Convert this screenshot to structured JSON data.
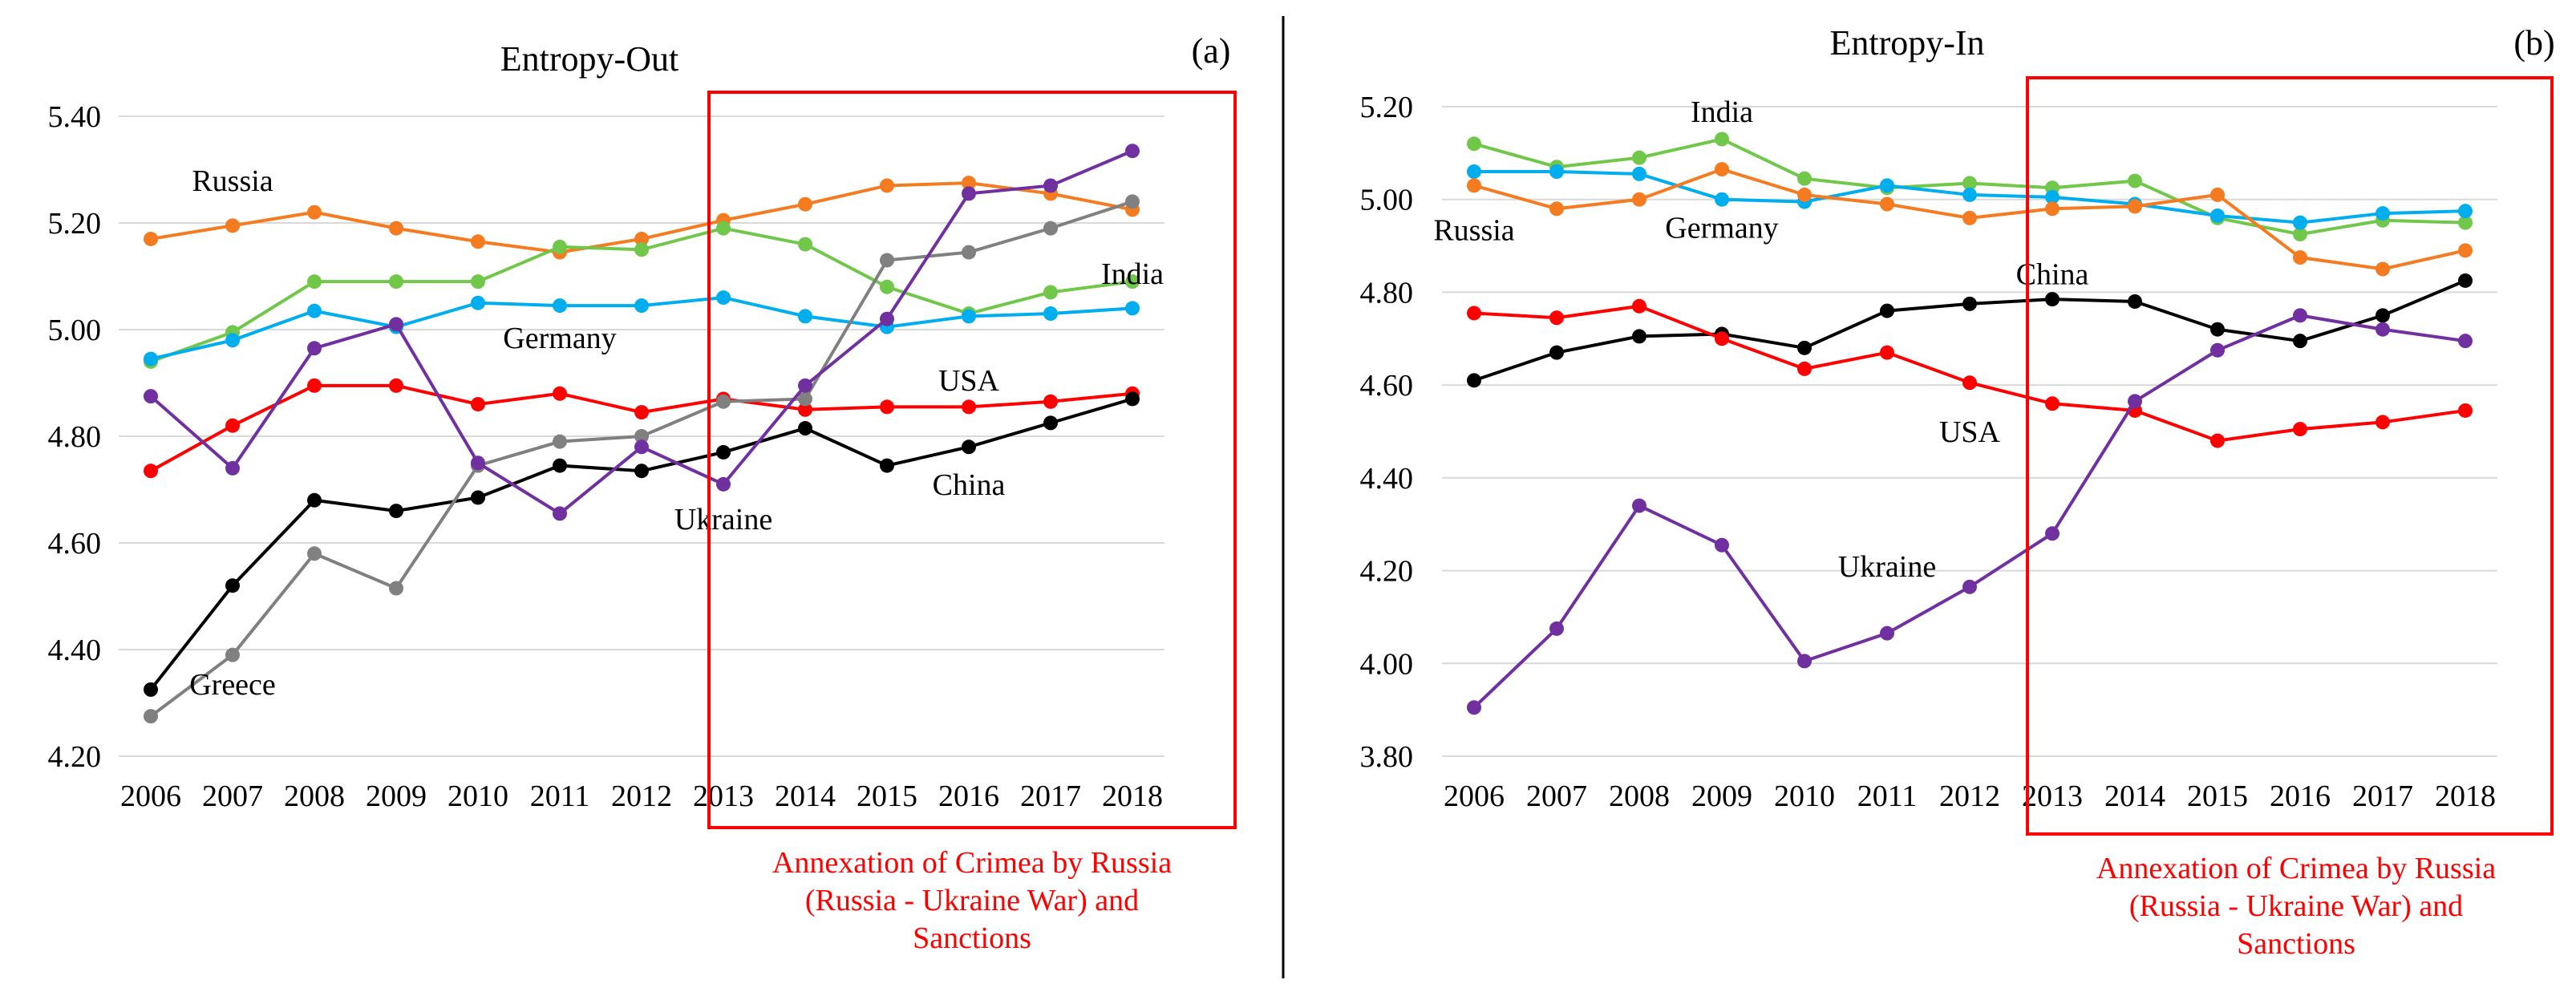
{
  "chart_data": [
    {
      "type": "line",
      "title": "Entropy-Out",
      "panel_label": "(a)",
      "xlabel": "",
      "ylabel": "",
      "categories": [
        "2006",
        "2007",
        "2008",
        "2009",
        "2010",
        "2011",
        "2012",
        "2013",
        "2014",
        "2015",
        "2016",
        "2017",
        "2018"
      ],
      "ylim": [
        4.2,
        5.4
      ],
      "yticks": [
        "4.20",
        "4.40",
        "4.60",
        "4.80",
        "5.00",
        "5.20",
        "5.40"
      ],
      "grid": true,
      "series": [
        {
          "name": "Russia",
          "color": "#f47b20",
          "values": [
            5.17,
            5.195,
            5.22,
            5.19,
            5.165,
            5.145,
            5.17,
            5.205,
            5.235,
            5.27,
            5.275,
            5.255,
            5.225
          ]
        },
        {
          "name": "India",
          "color": "#70c74a",
          "values": [
            4.94,
            4.995,
            5.09,
            5.09,
            5.09,
            5.155,
            5.15,
            5.19,
            5.16,
            5.08,
            5.03,
            5.07,
            5.09
          ]
        },
        {
          "name": "Germany",
          "color": "#00aeef",
          "values": [
            4.945,
            4.98,
            5.035,
            5.005,
            5.05,
            5.045,
            5.045,
            5.06,
            5.025,
            5.005,
            5.025,
            5.03,
            5.04
          ]
        },
        {
          "name": "USA",
          "color": "#ff0000",
          "values": [
            4.735,
            4.82,
            4.895,
            4.895,
            4.86,
            4.88,
            4.845,
            4.87,
            4.85,
            4.855,
            4.855,
            4.865,
            4.88
          ]
        },
        {
          "name": "China",
          "color": "#000000",
          "values": [
            4.325,
            4.52,
            4.68,
            4.66,
            4.685,
            4.745,
            4.735,
            4.77,
            4.815,
            4.745,
            4.78,
            4.825,
            4.87
          ]
        },
        {
          "name": "Greece",
          "color": "#808080",
          "values": [
            4.275,
            4.39,
            4.58,
            4.515,
            4.745,
            4.79,
            4.8,
            4.865,
            4.87,
            5.13,
            5.145,
            5.19,
            5.24
          ]
        },
        {
          "name": "Ukraine",
          "color": "#7030a0",
          "values": [
            4.875,
            4.74,
            4.965,
            5.01,
            4.75,
            4.655,
            4.78,
            4.71,
            4.895,
            5.02,
            5.255,
            5.27,
            5.335
          ]
        }
      ],
      "labels": [
        {
          "text": "Russia",
          "anchor_year": "2007",
          "value": 5.28
        },
        {
          "text": "India",
          "anchor_year": "2018",
          "value": 5.105
        },
        {
          "text": "Germany",
          "anchor_year": "2011",
          "value": 4.985
        },
        {
          "text": "USA",
          "anchor_year": "2016",
          "value": 4.905
        },
        {
          "text": "China",
          "anchor_year": "2016",
          "value": 4.71
        },
        {
          "text": "Ukraine",
          "anchor_year": "2013",
          "value": 4.645
        },
        {
          "text": "Greece",
          "anchor_year": "2007",
          "value": 4.335
        }
      ],
      "highlight": {
        "from_year": "2013",
        "to_year": "2018",
        "annotation": [
          "Annexation of Crimea by Russia",
          "(Russia - Ukraine War) and",
          "Sanctions"
        ]
      }
    },
    {
      "type": "line",
      "title": "Entropy-In",
      "panel_label": "(b)",
      "xlabel": "",
      "ylabel": "",
      "categories": [
        "2006",
        "2007",
        "2008",
        "2009",
        "2010",
        "2011",
        "2012",
        "2013",
        "2014",
        "2015",
        "2016",
        "2017",
        "2018"
      ],
      "ylim": [
        3.8,
        5.2
      ],
      "yticks": [
        "3.80",
        "4.00",
        "4.20",
        "4.40",
        "4.60",
        "4.80",
        "5.00",
        "5.20"
      ],
      "grid": true,
      "series": [
        {
          "name": "India",
          "color": "#70c74a",
          "values": [
            5.12,
            5.07,
            5.09,
            5.13,
            5.045,
            5.025,
            5.035,
            5.025,
            5.04,
            4.96,
            4.925,
            4.955,
            4.95
          ]
        },
        {
          "name": "Germany",
          "color": "#00aeef",
          "values": [
            5.06,
            5.06,
            5.055,
            5.0,
            4.995,
            5.03,
            5.01,
            5.005,
            4.99,
            4.965,
            4.95,
            4.97,
            4.975
          ]
        },
        {
          "name": "Russia",
          "color": "#f47b20",
          "values": [
            5.03,
            4.98,
            5.0,
            5.065,
            5.01,
            4.99,
            4.96,
            4.98,
            4.985,
            5.01,
            4.875,
            4.85,
            4.89
          ]
        },
        {
          "name": "China",
          "color": "#000000",
          "values": [
            4.61,
            4.67,
            4.705,
            4.71,
            4.68,
            4.76,
            4.775,
            4.785,
            4.78,
            4.72,
            4.695,
            4.75,
            4.825
          ]
        },
        {
          "name": "USA",
          "color": "#ff0000",
          "values": [
            4.755,
            4.745,
            4.77,
            4.7,
            4.635,
            4.67,
            4.605,
            4.56,
            4.545,
            4.48,
            4.505,
            4.52,
            4.545
          ]
        },
        {
          "name": "Ukraine",
          "color": "#7030a0",
          "values": [
            3.905,
            4.075,
            4.34,
            4.255,
            4.005,
            4.065,
            4.165,
            4.28,
            4.565,
            4.675,
            4.75,
            4.72,
            4.695
          ]
        }
      ],
      "labels": [
        {
          "text": "India",
          "anchor_year": "2009",
          "value": 5.19
        },
        {
          "text": "Russia",
          "anchor_year": "2006",
          "value": 4.935
        },
        {
          "text": "Germany",
          "anchor_year": "2009",
          "value": 4.94
        },
        {
          "text": "China",
          "anchor_year": "2013",
          "value": 4.84
        },
        {
          "text": "USA",
          "anchor_year": "2012",
          "value": 4.5
        },
        {
          "text": "Ukraine",
          "anchor_year": "2011",
          "value": 4.21
        }
      ],
      "highlight": {
        "from_year": "2013",
        "to_year": "2018",
        "annotation": [
          "Annexation of Crimea by Russia",
          "(Russia - Ukraine War) and",
          "Sanctions"
        ]
      }
    }
  ]
}
